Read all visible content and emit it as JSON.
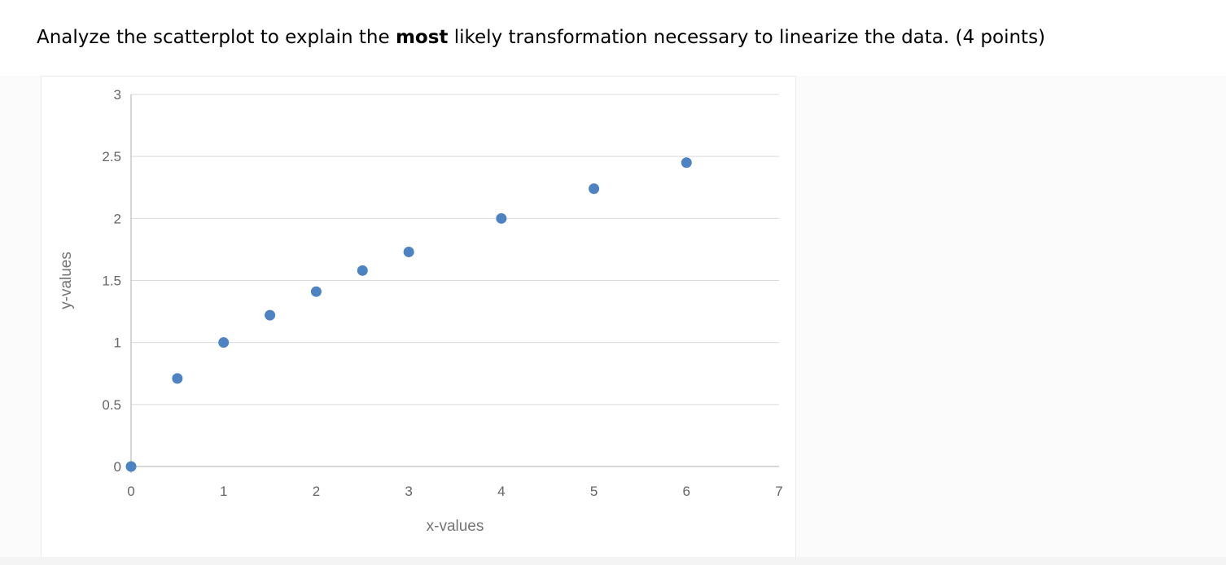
{
  "question": {
    "title_prefix": "Analyze the scatterplot to explain the ",
    "title_bold": "most",
    "title_suffix": " likely transformation necessary to linearize the data. (4 points)"
  },
  "chart_data": {
    "type": "scatter",
    "points": [
      {
        "x": 0,
        "y": 0
      },
      {
        "x": 0.5,
        "y": 0.71
      },
      {
        "x": 1,
        "y": 1
      },
      {
        "x": 1.5,
        "y": 1.22
      },
      {
        "x": 2,
        "y": 1.41
      },
      {
        "x": 2.5,
        "y": 1.58
      },
      {
        "x": 3,
        "y": 1.73
      },
      {
        "x": 4,
        "y": 2
      },
      {
        "x": 5,
        "y": 2.24
      },
      {
        "x": 6,
        "y": 2.45
      }
    ],
    "xlabel": "x-values",
    "ylabel": "y-values",
    "xlim": [
      0,
      7
    ],
    "ylim": [
      0,
      3
    ],
    "x_ticks": [
      0,
      1,
      2,
      3,
      4,
      5,
      6,
      7
    ],
    "y_ticks": [
      0,
      0.5,
      1,
      1.5,
      2,
      2.5,
      3
    ],
    "grid": "horizontal-only",
    "legend": "none",
    "colors": {
      "point": "#4d82c3",
      "gridline": "#d9d9d9",
      "axis_line": "#bfbfbf",
      "tick_label": "#666666",
      "axis_title": "#757575"
    }
  }
}
